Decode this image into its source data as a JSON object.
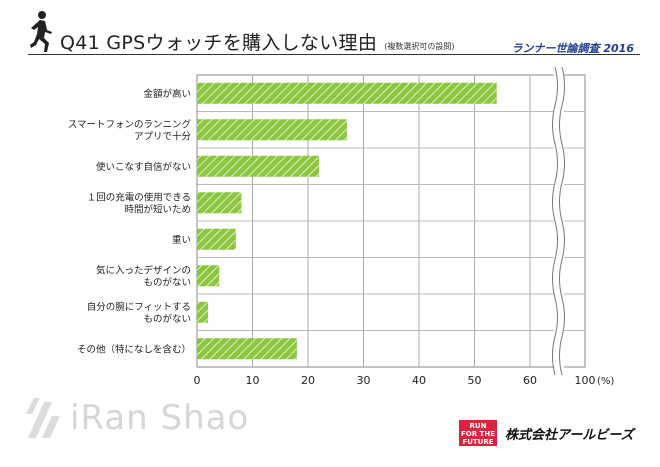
{
  "header": {
    "title": "Q41 GPSウォッチを購入しない理由",
    "title_note": "(複数選択可の設問)",
    "subtitle": "ランナー世論調査 2016"
  },
  "chart_data": {
    "type": "bar",
    "orientation": "horizontal",
    "categories": [
      [
        "金額が高い"
      ],
      [
        "スマートフォンのランニング",
        "アプリで十分"
      ],
      [
        "使いこなす自信がない"
      ],
      [
        "１回の充電の使用できる",
        "時間が短いため"
      ],
      [
        "重い"
      ],
      [
        "気に入ったデザインの",
        "ものがない"
      ],
      [
        "自分の腕にフィットする",
        "ものがない"
      ],
      [
        "その他（特になしを含む）"
      ]
    ],
    "values": [
      54,
      27,
      22,
      8,
      7,
      4,
      2,
      18
    ],
    "xlim": [
      0,
      100
    ],
    "x_ticks": [
      "0",
      "10",
      "20",
      "30",
      "40",
      "50",
      "60",
      "100"
    ],
    "x_unit": "(%)",
    "axis_break": "between 60 and 100",
    "bar_color": "#8cc63f",
    "grid": true
  },
  "footer": {
    "brand_text": "iRan Shao",
    "badge_lines": [
      "RUN",
      "FOR THE",
      "FUTURE"
    ],
    "company": "株式会社アールビーズ"
  }
}
